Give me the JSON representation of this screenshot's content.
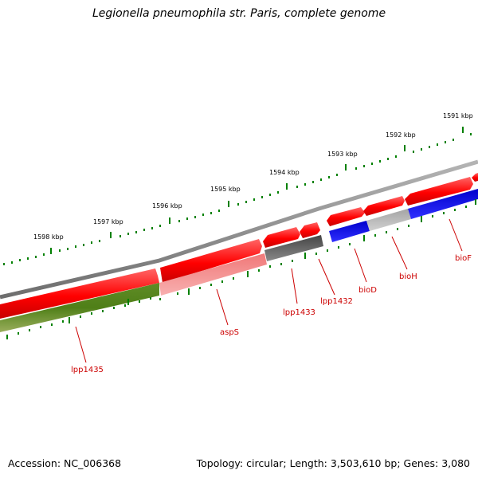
{
  "title": "Legionella pneumophila str. Paris, complete genome",
  "footer": {
    "accession": "Accession: NC_006368",
    "summary": "Topology: circular; Length: 3,503,610 bp; Genes: 3,080"
  },
  "kbp_labels": [
    "1598 kbp",
    "1597 kbp",
    "1596 kbp",
    "1595 kbp",
    "1594 kbp",
    "1593 kbp",
    "1592 kbp",
    "1591 kbp"
  ],
  "genes": [
    {
      "name": "lpp1435",
      "fill": "#4f7f18"
    },
    {
      "name": "aspS",
      "fill": "#f08080"
    },
    {
      "name": "lpp1433",
      "fill": "#5a5a5a"
    },
    {
      "name": "lpp1432",
      "fill": "#ff0000"
    },
    {
      "name": "bioD",
      "fill": "#0000ee"
    },
    {
      "name": "bioH",
      "fill": "#b5b5b5"
    },
    {
      "name": "bioF",
      "fill": "#0000ee"
    }
  ],
  "colors": {
    "backbone": "#808080",
    "cds_strand": "#ff0000",
    "tick": "#008000",
    "gene_label": "#cc0000"
  }
}
